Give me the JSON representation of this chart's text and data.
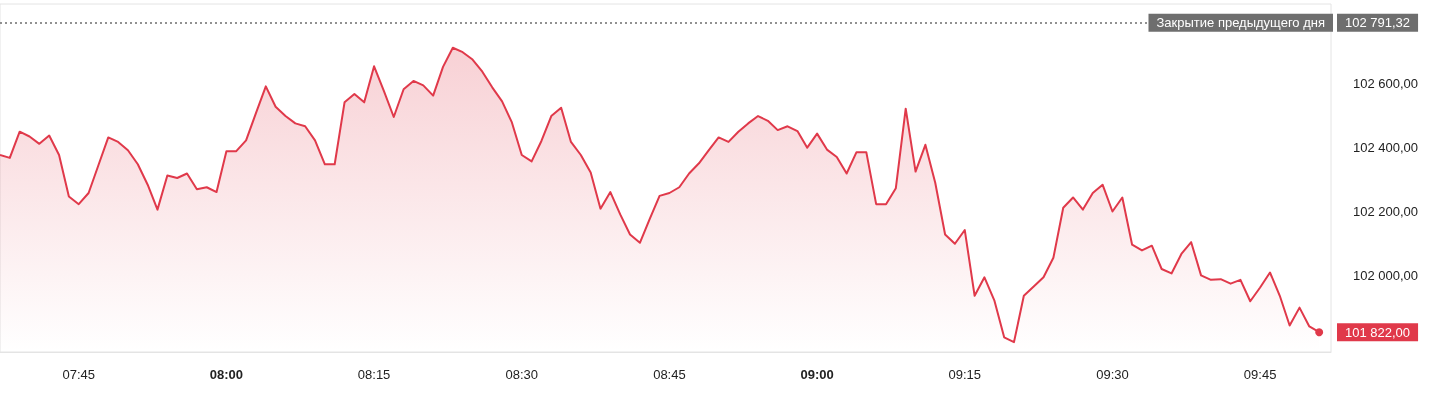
{
  "chart_data": {
    "type": "area",
    "x": [
      7.6167,
      7.6333,
      7.65,
      7.6667,
      7.6833,
      7.7,
      7.7167,
      7.7333,
      7.75,
      7.7667,
      7.7833,
      7.8,
      7.8167,
      7.8333,
      7.85,
      7.8667,
      7.8833,
      7.9,
      7.9167,
      7.9333,
      7.95,
      7.9667,
      7.9833,
      8,
      8.0167,
      8.0333,
      8.05,
      8.0667,
      8.0833,
      8.1,
      8.1167,
      8.1333,
      8.15,
      8.1667,
      8.1833,
      8.2,
      8.2167,
      8.2333,
      8.25,
      8.2667,
      8.2833,
      8.3,
      8.3167,
      8.3333,
      8.35,
      8.3667,
      8.3833,
      8.4,
      8.4167,
      8.4333,
      8.45,
      8.4667,
      8.4833,
      8.5,
      8.5167,
      8.5333,
      8.55,
      8.5667,
      8.5833,
      8.6,
      8.6167,
      8.6333,
      8.65,
      8.6667,
      8.6833,
      8.7,
      8.7167,
      8.7333,
      8.75,
      8.7667,
      8.7833,
      8.8,
      8.8167,
      8.8333,
      8.85,
      8.8667,
      8.8833,
      8.9,
      8.9167,
      8.9333,
      8.95,
      8.9667,
      8.9833,
      9,
      9.0167,
      9.0333,
      9.05,
      9.0667,
      9.0833,
      9.1,
      9.1167,
      9.1333,
      9.15,
      9.1667,
      9.1833,
      9.2,
      9.2167,
      9.2333,
      9.25,
      9.2667,
      9.2833,
      9.3,
      9.3167,
      9.3333,
      9.35,
      9.3667,
      9.3833,
      9.4,
      9.4167,
      9.4333,
      9.45,
      9.4667,
      9.4833,
      9.5,
      9.5167,
      9.5333,
      9.55,
      9.5667,
      9.5833,
      9.6,
      9.6167,
      9.6333,
      9.65,
      9.6667,
      9.6833,
      9.7,
      9.7167,
      9.7333,
      9.75,
      9.7667,
      9.7833,
      9.8,
      9.8167,
      9.8333,
      9.85
    ],
    "series": [
      {
        "color": "#e0394a",
        "values": [
          102377,
          102368,
          102450,
          102435,
          102412,
          102438,
          102377,
          102247,
          102223,
          102258,
          102345,
          102432,
          102418,
          102392,
          102348,
          102284,
          102206,
          102313,
          102305,
          102319,
          102270,
          102276,
          102261,
          102389,
          102389,
          102423,
          102508,
          102592,
          102528,
          102499,
          102476,
          102467,
          102423,
          102348,
          102348,
          102542,
          102568,
          102542,
          102655,
          102577,
          102496,
          102583,
          102609,
          102595,
          102563,
          102653,
          102713,
          102699,
          102676,
          102638,
          102589,
          102545,
          102479,
          102377,
          102357,
          102421,
          102499,
          102525,
          102418,
          102377,
          102322,
          102209,
          102261,
          102191,
          102128,
          102102,
          102177,
          102249,
          102258,
          102276,
          102319,
          102351,
          102392,
          102432,
          102418,
          102450,
          102476,
          102499,
          102484,
          102455,
          102467,
          102452,
          102400,
          102444,
          102394,
          102371,
          102319,
          102386,
          102386,
          102223,
          102223,
          102273,
          102522,
          102325,
          102409,
          102290,
          102128,
          102099,
          102142,
          101936,
          101994,
          101922,
          101806,
          101791,
          101936,
          101965,
          101994,
          102055,
          102212,
          102244,
          102206,
          102258,
          102284,
          102200,
          102244,
          102096,
          102078,
          102093,
          102020,
          102006,
          102067,
          102104,
          102000,
          101986,
          101988,
          101974,
          101986,
          101919,
          101962,
          102009,
          101936,
          101843,
          101899,
          101840,
          101822
        ]
      }
    ],
    "xlim": [
      7.6167,
      9.87
    ],
    "xticks": [
      {
        "value": 7.75,
        "label": "07:45"
      },
      {
        "value": 8,
        "label": "08:00"
      },
      {
        "value": 8.25,
        "label": "08:15"
      },
      {
        "value": 8.5,
        "label": "08:30"
      },
      {
        "value": 8.75,
        "label": "08:45"
      },
      {
        "value": 9,
        "label": "09:00"
      },
      {
        "value": 9.25,
        "label": "09:15"
      },
      {
        "value": 9.5,
        "label": "09:30"
      },
      {
        "value": 9.75,
        "label": "09:45"
      }
    ],
    "ylim": [
      101760,
      102850
    ],
    "yticks": [
      {
        "value": 102000,
        "label": "102 000,00"
      },
      {
        "value": 102200,
        "label": "102 200,00"
      },
      {
        "value": 102400,
        "label": "102 400,00"
      },
      {
        "value": 102600,
        "label": "102 600,00"
      }
    ],
    "ref_lines": [
      {
        "axis": "y",
        "value": 102791.32,
        "label": "Закрытие предыдущего дня",
        "color": "#6e6e6e",
        "line_style": "dotted"
      }
    ],
    "annotations": [
      "102 791,32",
      {
        "text": "101 822,00",
        "x": 9.85,
        "y": 101822
      }
    ],
    "marker": "none",
    "line_style": "solid",
    "grid": false
  }
}
